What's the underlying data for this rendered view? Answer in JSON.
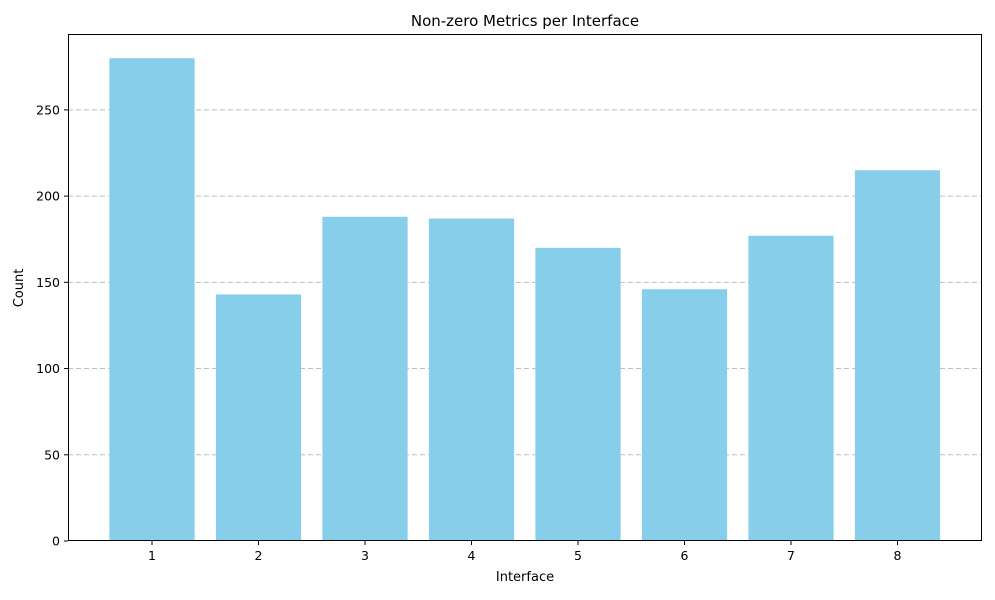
{
  "chart_data": {
    "type": "bar",
    "title": "Non-zero Metrics per Interface",
    "xlabel": "Interface",
    "ylabel": "Count",
    "categories": [
      "1",
      "2",
      "3",
      "4",
      "5",
      "6",
      "7",
      "8"
    ],
    "values": [
      280,
      143,
      188,
      187,
      170,
      146,
      177,
      215
    ],
    "ylim": [
      0,
      294
    ],
    "yticks": [
      0,
      50,
      100,
      150,
      200,
      250
    ],
    "grid": {
      "axis": "y",
      "style": "dashed"
    },
    "colors": {
      "bar": "#87ceeb"
    }
  }
}
